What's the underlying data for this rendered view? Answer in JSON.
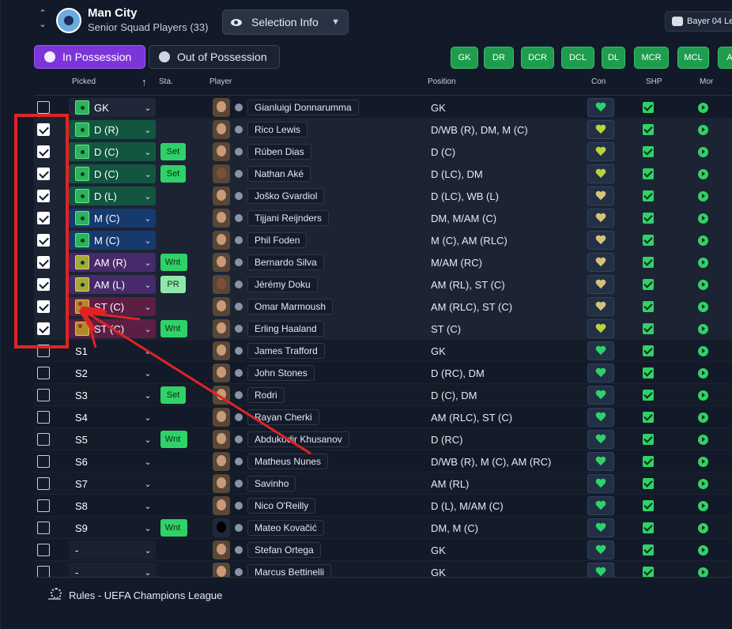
{
  "header": {
    "club_name": "Man City",
    "club_sub": "Senior Squad Players (33)",
    "nav_up": "⌃",
    "nav_down": "⌄",
    "selection_info": "Selection Info",
    "opponent": "Bayer 04 Le"
  },
  "tabs": {
    "in_possession": "In Possession",
    "out_of_possession": "Out of Possession"
  },
  "position_buttons": [
    "GK",
    "DR",
    "DCR",
    "DCL",
    "DL",
    "MCR",
    "MCL",
    "A"
  ],
  "columns": {
    "picked": "Picked",
    "sta": "Sta.",
    "player": "Player",
    "position": "Position",
    "con": "Con",
    "shp": "SHP",
    "mor": "Mor"
  },
  "rows": [
    {
      "checked": false,
      "picked": "GK",
      "group": "gk",
      "pitch": "",
      "status": "",
      "player": "Gianluigi Donnarumma",
      "face": "light",
      "position": "GK",
      "con": "g"
    },
    {
      "checked": true,
      "picked": "D (R)",
      "group": "def",
      "pitch": "",
      "status": "",
      "player": "Rico Lewis",
      "face": "light",
      "position": "D/WB (R), DM, M (C)",
      "con": "y"
    },
    {
      "checked": true,
      "picked": "D (C)",
      "group": "def",
      "pitch": "",
      "status": "Set",
      "player": "Rúben Dias",
      "face": "light",
      "position": "D (C)",
      "con": "y"
    },
    {
      "checked": true,
      "picked": "D (C)",
      "group": "def",
      "pitch": "",
      "status": "Set",
      "player": "Nathan Aké",
      "face": "dark",
      "position": "D (LC), DM",
      "con": "y"
    },
    {
      "checked": true,
      "picked": "D (L)",
      "group": "def",
      "pitch": "",
      "status": "",
      "player": "Joško Gvardiol",
      "face": "light",
      "position": "D (LC), WB (L)",
      "con": "w"
    },
    {
      "checked": true,
      "picked": "M (C)",
      "group": "mid",
      "pitch": "",
      "status": "",
      "player": "Tijjani Reijnders",
      "face": "light",
      "position": "DM, M/AM (C)",
      "con": "w"
    },
    {
      "checked": true,
      "picked": "M (C)",
      "group": "mid",
      "pitch": "",
      "status": "",
      "player": "Phil Foden",
      "face": "light",
      "position": "M (C), AM (RLC)",
      "con": "w"
    },
    {
      "checked": true,
      "picked": "AM (R)",
      "group": "am",
      "pitch": "amp",
      "status": "Wnt",
      "player": "Bernardo Silva",
      "face": "light",
      "position": "M/AM (RC)",
      "con": "w"
    },
    {
      "checked": true,
      "picked": "AM (L)",
      "group": "am",
      "pitch": "amp",
      "status": "PR",
      "player": "Jérémy Doku",
      "face": "dark",
      "position": "AM (RL), ST (C)",
      "con": "w"
    },
    {
      "checked": true,
      "picked": "ST (C)",
      "group": "st",
      "pitch": "stp",
      "status": "",
      "player": "Omar Marmoush",
      "face": "light",
      "position": "AM (RLC), ST (C)",
      "con": "w"
    },
    {
      "checked": true,
      "picked": "ST (C)",
      "group": "st",
      "pitch": "stp",
      "status": "Wnt",
      "player": "Erling Haaland",
      "face": "light",
      "position": "ST (C)",
      "con": "y"
    },
    {
      "checked": false,
      "picked": "S1",
      "group": "sub",
      "pitch": "",
      "status": "",
      "player": "James Trafford",
      "face": "light",
      "position": "GK",
      "con": "g"
    },
    {
      "checked": false,
      "picked": "S2",
      "group": "sub",
      "pitch": "",
      "status": "",
      "player": "John Stones",
      "face": "light",
      "position": "D (RC), DM",
      "con": "g"
    },
    {
      "checked": false,
      "picked": "S3",
      "group": "sub",
      "pitch": "",
      "status": "Set",
      "player": "Rodri",
      "face": "light",
      "position": "D (C), DM",
      "con": "g"
    },
    {
      "checked": false,
      "picked": "S4",
      "group": "sub",
      "pitch": "",
      "status": "",
      "player": "Rayan Cherki",
      "face": "light",
      "position": "AM (RLC), ST (C)",
      "con": "g"
    },
    {
      "checked": false,
      "picked": "S5",
      "group": "sub",
      "pitch": "",
      "status": "Wnt",
      "player": "Abdukodir Khusanov",
      "face": "light",
      "position": "D (RC)",
      "con": "g"
    },
    {
      "checked": false,
      "picked": "S6",
      "group": "sub",
      "pitch": "",
      "status": "",
      "player": "Matheus Nunes",
      "face": "light",
      "position": "D/WB (R), M (C), AM (RC)",
      "con": "g"
    },
    {
      "checked": false,
      "picked": "S7",
      "group": "sub",
      "pitch": "",
      "status": "",
      "player": "Savinho",
      "face": "light",
      "position": "AM (RL)",
      "con": "g"
    },
    {
      "checked": false,
      "picked": "S8",
      "group": "sub",
      "pitch": "",
      "status": "",
      "player": "Nico O'Reilly",
      "face": "light",
      "position": "D (L), M/AM (C)",
      "con": "g"
    },
    {
      "checked": false,
      "picked": "S9",
      "group": "sub",
      "pitch": "",
      "status": "Wnt",
      "player": "Mateo Kovačić",
      "face": "sil",
      "position": "DM, M (C)",
      "con": "g"
    },
    {
      "checked": false,
      "picked": "-",
      "group": "none",
      "pitch": "",
      "status": "",
      "player": "Stefan Ortega",
      "face": "light",
      "position": "GK",
      "con": "g"
    },
    {
      "checked": false,
      "picked": "-",
      "group": "none",
      "pitch": "",
      "status": "",
      "player": "Marcus Bettinelli",
      "face": "light",
      "position": "GK",
      "con": "g"
    }
  ],
  "footer": {
    "rules": "Rules - UEFA Champions League"
  },
  "colors": {
    "accent_purple": "#7b35d8",
    "green": "#2fd268",
    "annotation_red": "#e02424"
  },
  "icons": [
    "eye-icon",
    "chevron-down-icon",
    "club-crest-icon",
    "heart-icon",
    "check-icon",
    "morale-icon",
    "pitch-icon",
    "champions-league-icon"
  ]
}
